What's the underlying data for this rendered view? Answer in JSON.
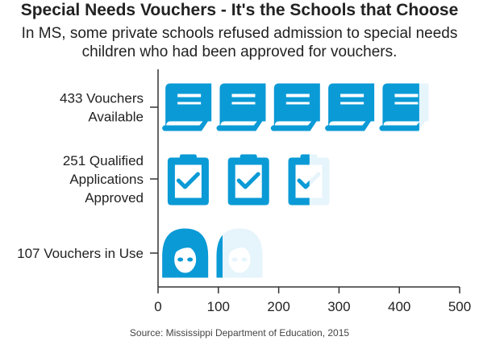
{
  "title": "Special Needs Vouchers - It's the Schools that Choose",
  "subtitle": "In MS, some private schools refused admission to special needs children who had been approved for vouchers.",
  "source": "Source: Mississippi Department of Education, 2015",
  "colors": {
    "icon": "#0a9ad6",
    "icon_faded": "#e6f4fb",
    "axis": "#333333"
  },
  "chart_data": {
    "type": "bar",
    "style": "pictograph",
    "categories": [
      {
        "label_lines": [
          "433 Vouchers",
          "Available"
        ],
        "value": 433,
        "icon": "book-icon",
        "unit": 90
      },
      {
        "label_lines": [
          "251 Qualified",
          "Applications",
          "Approved"
        ],
        "value": 251,
        "icon": "clipboard-check-icon",
        "unit": 100
      },
      {
        "label_lines": [
          "107 Vouchers in Use"
        ],
        "value": 107,
        "icon": "person-icon",
        "unit": 90
      }
    ],
    "xlim": [
      0,
      500
    ],
    "xticks": [
      0,
      100,
      200,
      300,
      400,
      500
    ],
    "grid": false,
    "legend": "none"
  }
}
